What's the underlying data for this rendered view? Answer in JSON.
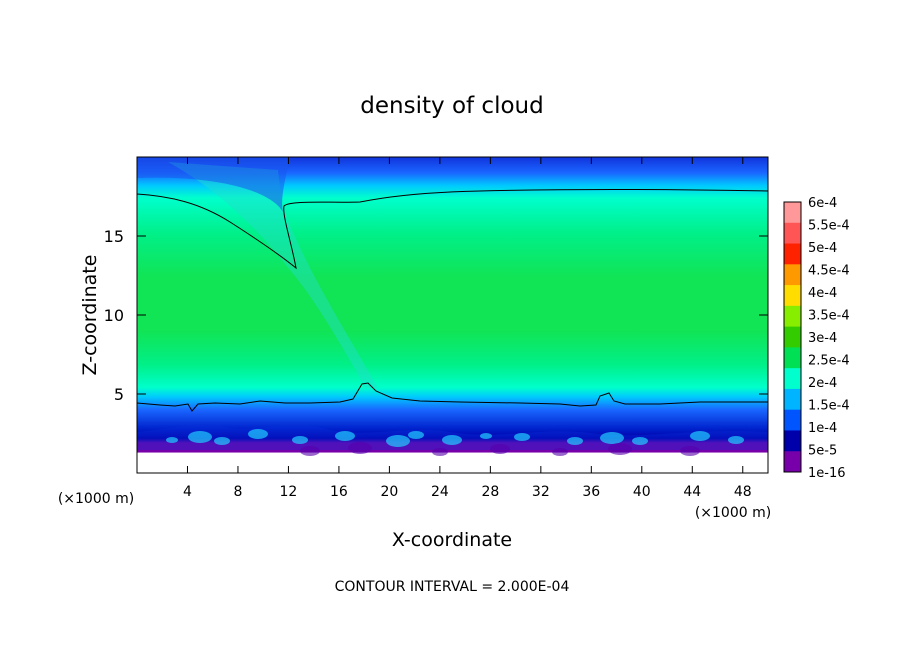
{
  "chart_data": {
    "type": "heatmap",
    "title": "density of cloud",
    "xlabel": "X-coordinate",
    "ylabel": "Z-coordinate",
    "x_unit": "(×1000 m)",
    "xlim": [
      0,
      50
    ],
    "ylim": [
      0,
      20
    ],
    "x_ticks": [
      "4",
      "8",
      "12",
      "16",
      "20",
      "24",
      "28",
      "32",
      "36",
      "40",
      "44",
      "48"
    ],
    "y_ticks": [
      "5",
      "10",
      "15"
    ],
    "footer": "CONTOUR INTERVAL = 2.000E-04",
    "colorbar": {
      "labels": [
        "6e-4",
        "5.5e-4",
        "5e-4",
        "4.5e-4",
        "4e-4",
        "3.5e-4",
        "3e-4",
        "2.5e-4",
        "2e-4",
        "1.5e-4",
        "1e-4",
        "5e-5",
        "1e-16"
      ],
      "colors": [
        "#ff9999",
        "#ff5555",
        "#ff2200",
        "#ff9900",
        "#ffdd00",
        "#88ee00",
        "#33cc00",
        "#00e055",
        "#00ffcc",
        "#00b4ff",
        "#0055ff",
        "#0000aa",
        "#7700aa"
      ]
    },
    "field": {
      "cloud_base_z": 1.6,
      "mid_region_value": "2.5e-4",
      "contour_value": "2e-4",
      "upper_contour_z": 17.7,
      "lower_contour_z": 4.6
    }
  }
}
